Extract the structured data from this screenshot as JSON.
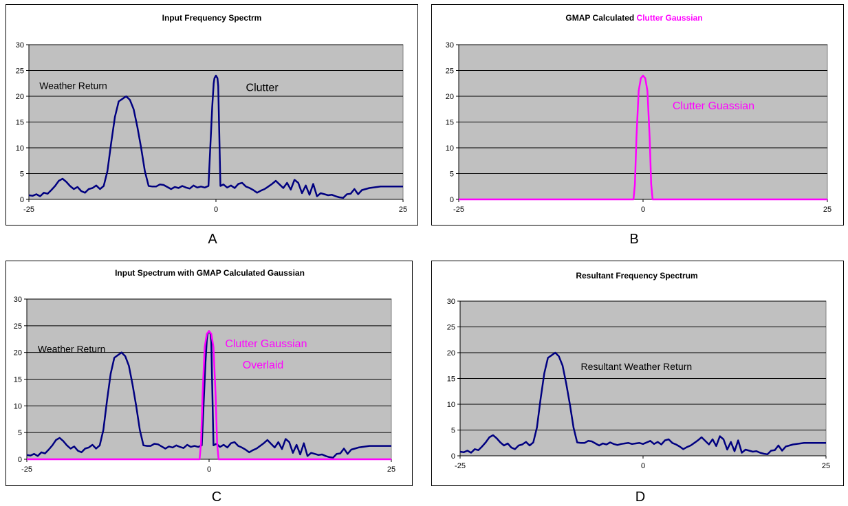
{
  "chart_data": [
    {
      "id": "A",
      "type": "line",
      "title_parts": [
        {
          "text": "Input Frequency Spectrm",
          "color": "#000000"
        }
      ],
      "xlabel": "",
      "ylabel": "",
      "xlim": [
        -25,
        25
      ],
      "ylim": [
        0,
        30
      ],
      "x_ticks": [
        -25,
        0,
        25
      ],
      "y_ticks": [
        0,
        5,
        10,
        15,
        20,
        25,
        30
      ],
      "grid": true,
      "plot_bg": "#c0c0c0",
      "annotations": [
        {
          "text": "Weather Return",
          "x": -23.6,
          "y": 21.4,
          "color": "#000000",
          "size": 14
        },
        {
          "text": "Clutter",
          "x": 4,
          "y": 21.0,
          "color": "#000000",
          "size": 16
        }
      ],
      "series": [
        {
          "color": "#000080",
          "width": 2.5,
          "curve": "input"
        }
      ]
    },
    {
      "id": "B",
      "type": "line",
      "title_parts": [
        {
          "text": "GMAP Calculated ",
          "color": "#000000"
        },
        {
          "text": "Clutter Gaussian",
          "color": "#ff00ff"
        }
      ],
      "xlabel": "",
      "ylabel": "",
      "xlim": [
        -25,
        25
      ],
      "ylim": [
        0,
        30
      ],
      "x_ticks": [
        -25,
        0,
        25
      ],
      "y_ticks": [
        0,
        5,
        10,
        15,
        20,
        25,
        30
      ],
      "grid": true,
      "plot_bg": "#c0c0c0",
      "annotations": [
        {
          "text": "Clutter Guassian",
          "x": 4,
          "y": 17.5,
          "color": "#ff00ff",
          "size": 16
        }
      ],
      "series": [
        {
          "color": "#ff00ff",
          "width": 2.5,
          "curve": "gaussian"
        }
      ]
    },
    {
      "id": "C",
      "type": "line",
      "title_parts": [
        {
          "text": "Input Spectrum with GMAP Calculated Gaussian",
          "color": "#000000"
        }
      ],
      "xlabel": "",
      "ylabel": "",
      "xlim": [
        -25,
        25
      ],
      "ylim": [
        0,
        30
      ],
      "x_ticks": [
        -25,
        0,
        25
      ],
      "y_ticks": [
        0,
        5,
        10,
        15,
        20,
        25,
        30
      ],
      "grid": true,
      "plot_bg": "#c0c0c0",
      "annotations": [
        {
          "text": "Weather Return",
          "x": -23.5,
          "y": 20.0,
          "color": "#000000",
          "size": 14
        },
        {
          "text": "Clutter Gaussian",
          "x": 2.2,
          "y": 21.0,
          "color": "#ff00ff",
          "size": 16
        },
        {
          "text": "Overlaid",
          "x": 4.6,
          "y": 17.0,
          "color": "#ff00ff",
          "size": 16
        }
      ],
      "series": [
        {
          "color": "#000080",
          "width": 2.5,
          "curve": "input"
        },
        {
          "color": "#ff00ff",
          "width": 2.5,
          "curve": "gaussian"
        }
      ]
    },
    {
      "id": "D",
      "type": "line",
      "title_parts": [
        {
          "text": "Resultant Frequency Spectrum",
          "color": "#000000"
        }
      ],
      "xlabel": "",
      "ylabel": "",
      "xlim": [
        -25,
        25
      ],
      "ylim": [
        0,
        30
      ],
      "x_ticks": [
        -25,
        0,
        25
      ],
      "y_ticks": [
        0,
        5,
        10,
        15,
        20,
        25,
        30
      ],
      "grid": true,
      "plot_bg": "#c0c0c0",
      "annotations": [
        {
          "text": "Resultant Weather Return",
          "x": -8.5,
          "y": 16.7,
          "color": "#000000",
          "size": 14
        }
      ],
      "series": [
        {
          "color": "#000080",
          "width": 2.5,
          "curve": "resultant"
        }
      ]
    }
  ],
  "curves": {
    "input": {
      "x": [
        -25,
        -24.5,
        -24,
        -23.5,
        -23,
        -22.5,
        -22,
        -21.5,
        -21,
        -20.5,
        -20,
        -19.5,
        -19,
        -18.5,
        -18,
        -17.5,
        -17,
        -16.5,
        -16,
        -15.5,
        -15,
        -14.5,
        -14,
        -13.5,
        -13,
        -12.5,
        -12,
        -11.5,
        -11,
        -10.5,
        -10,
        -9.5,
        -9,
        -8.5,
        -8,
        -7.5,
        -7,
        -6.5,
        -6,
        -5.5,
        -5,
        -4.5,
        -4,
        -3.5,
        -3,
        -2.5,
        -2,
        -1.5,
        -1,
        -0.5,
        -0.3,
        -0.2,
        0,
        0.2,
        0.3,
        0.6,
        1,
        1.5,
        2,
        2.5,
        3,
        3.5,
        4,
        4.5,
        5,
        5.5,
        6,
        6.5,
        7,
        7.5,
        8,
        8.5,
        9,
        9.5,
        10,
        10.5,
        11,
        11.5,
        12,
        12.5,
        13,
        13.5,
        14,
        14.5,
        15,
        15.5,
        16,
        16.5,
        17,
        17.5,
        18,
        18.5,
        19,
        19.5,
        20,
        20.5,
        21,
        21.5,
        22,
        22.5,
        23,
        23.5,
        24,
        24.5,
        25
      ],
      "y": [
        0.8,
        0.7,
        1.0,
        0.6,
        1.3,
        1.1,
        1.8,
        2.6,
        3.6,
        4.0,
        3.4,
        2.6,
        2.0,
        2.4,
        1.6,
        1.3,
        2.0,
        2.2,
        2.7,
        2.0,
        2.6,
        5.5,
        11,
        16,
        19,
        19.5,
        20,
        19.3,
        17.5,
        14,
        10,
        5.5,
        2.6,
        2.5,
        2.5,
        2.9,
        2.8,
        2.4,
        2.0,
        2.4,
        2.2,
        2.6,
        2.3,
        2.1,
        2.7,
        2.3,
        2.5,
        2.3,
        2.6,
        18,
        22.5,
        23.5,
        24,
        23.5,
        22,
        2.6,
        2.9,
        2.3,
        2.7,
        2.2,
        3.0,
        3.2,
        2.5,
        2.2,
        1.8,
        1.3,
        1.7,
        2.0,
        2.5,
        3.0,
        3.6,
        2.9,
        2.2,
        3.2,
        1.9,
        3.8,
        3.2,
        1.2,
        2.7,
        0.9,
        3.0,
        0.6,
        1.2,
        1.0,
        0.8,
        0.9,
        0.6,
        0.4,
        0.3,
        1.0,
        1.1,
        2.0,
        1.0,
        1.8,
        2.0,
        2.2,
        2.3,
        2.4,
        2.5,
        2.5,
        2.5,
        2.5,
        2.5,
        2.5,
        2.5
      ]
    },
    "gaussian": {
      "x": [
        -25,
        -1.3,
        -1.1,
        -0.9,
        -0.6,
        -0.3,
        0,
        0.3,
        0.6,
        0.9,
        1.1,
        1.3,
        25
      ],
      "y": [
        0,
        0,
        3,
        12,
        21,
        23.5,
        24,
        23.5,
        21,
        12,
        3,
        0,
        0
      ]
    },
    "resultant": {
      "x": [
        -25,
        -24.5,
        -24,
        -23.5,
        -23,
        -22.5,
        -22,
        -21.5,
        -21,
        -20.5,
        -20,
        -19.5,
        -19,
        -18.5,
        -18,
        -17.5,
        -17,
        -16.5,
        -16,
        -15.5,
        -15,
        -14.5,
        -14,
        -13.5,
        -13,
        -12.5,
        -12,
        -11.5,
        -11,
        -10.5,
        -10,
        -9.5,
        -9,
        -8.5,
        -8,
        -7.5,
        -7,
        -6.5,
        -6,
        -5.5,
        -5,
        -4.5,
        -4,
        -3.5,
        -3,
        -2.5,
        -2,
        -1.5,
        -1,
        -0.5,
        0,
        0.5,
        1,
        1.5,
        2,
        2.5,
        3,
        3.5,
        4,
        4.5,
        5,
        5.5,
        6,
        6.5,
        7,
        7.5,
        8,
        8.5,
        9,
        9.5,
        10,
        10.5,
        11,
        11.5,
        12,
        12.5,
        13,
        13.5,
        14,
        14.5,
        15,
        15.5,
        16,
        16.5,
        17,
        17.5,
        18,
        18.5,
        19,
        19.5,
        20,
        20.5,
        21,
        21.5,
        22,
        22.5,
        23,
        23.5,
        24,
        24.5,
        25
      ],
      "y": [
        0.8,
        0.7,
        1.0,
        0.6,
        1.3,
        1.1,
        1.8,
        2.6,
        3.6,
        4.0,
        3.4,
        2.6,
        2.0,
        2.4,
        1.6,
        1.3,
        2.0,
        2.2,
        2.7,
        2.0,
        2.6,
        5.5,
        11,
        16,
        19,
        19.5,
        20,
        19.3,
        17.5,
        14,
        10,
        5.5,
        2.6,
        2.5,
        2.5,
        2.9,
        2.8,
        2.4,
        2.0,
        2.4,
        2.2,
        2.6,
        2.3,
        2.1,
        2.3,
        2.4,
        2.5,
        2.3,
        2.4,
        2.5,
        2.3,
        2.6,
        2.9,
        2.3,
        2.7,
        2.2,
        3.0,
        3.2,
        2.5,
        2.2,
        1.8,
        1.3,
        1.7,
        2.0,
        2.5,
        3.0,
        3.6,
        2.9,
        2.2,
        3.2,
        1.9,
        3.8,
        3.2,
        1.2,
        2.7,
        0.9,
        3.0,
        0.6,
        1.2,
        1.0,
        0.8,
        0.9,
        0.6,
        0.4,
        0.3,
        1.0,
        1.1,
        2.0,
        1.0,
        1.8,
        2.0,
        2.2,
        2.3,
        2.4,
        2.5,
        2.5,
        2.5,
        2.5,
        2.5,
        2.5,
        2.5
      ]
    }
  },
  "captions": {
    "a": "A",
    "b": "B",
    "c": "C",
    "d": "D"
  }
}
